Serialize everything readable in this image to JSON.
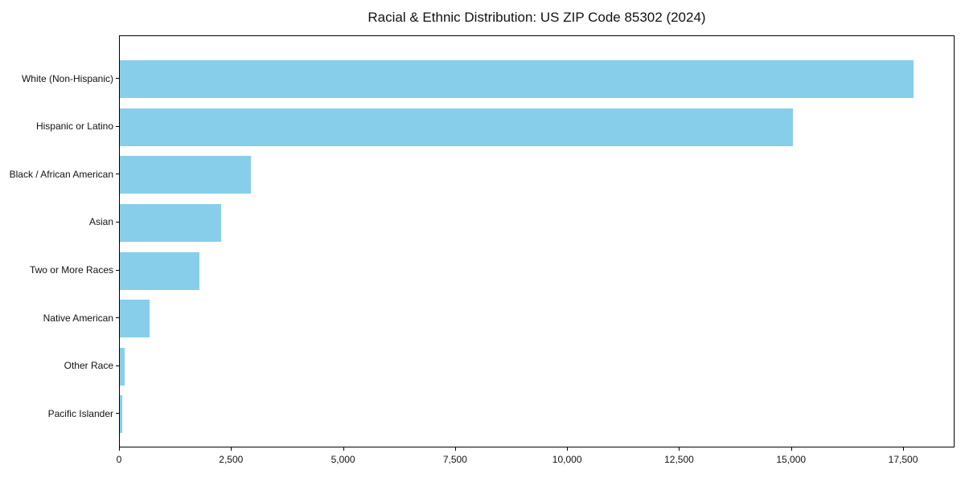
{
  "chart_data": {
    "type": "bar",
    "orientation": "horizontal",
    "title": "Racial & Ethnic Distribution: US ZIP Code 85302 (2024)",
    "categories": [
      "White (Non-Hispanic)",
      "Hispanic or Latino",
      "Black / African American",
      "Asian",
      "Two or More Races",
      "Native American",
      "Other Race",
      "Pacific Islander"
    ],
    "values": [
      17730,
      15040,
      2930,
      2260,
      1780,
      670,
      110,
      55
    ],
    "xlabel": "",
    "ylabel": "",
    "xlim": [
      0,
      18630
    ],
    "x_ticks": [
      0,
      2500,
      5000,
      7500,
      10000,
      12500,
      15000,
      17500
    ],
    "x_tick_labels": [
      "0",
      "2,500",
      "5,000",
      "7,500",
      "10,000",
      "12,500",
      "15,000",
      "17,500"
    ],
    "bar_color": "#87CEEB",
    "frame_color": "#000000",
    "grid": false,
    "legend": null
  }
}
